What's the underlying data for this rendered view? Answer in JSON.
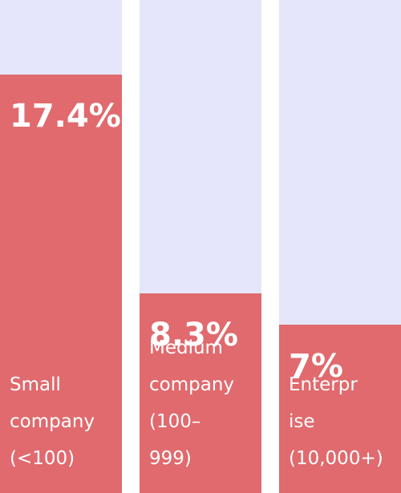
{
  "colors": {
    "track": "#e5e6fb",
    "bar": "#e06a6e",
    "text": "#ffffff"
  },
  "chart_data": {
    "type": "bar",
    "orientation": "vertical",
    "categories": [
      "Small\ncompany\n(<100)",
      "Medium\ncompany\n(100–\n999)",
      "Enterpr\nise\n(10,000+)"
    ],
    "values": [
      17.4,
      8.3,
      7
    ],
    "value_labels": [
      "17.4%",
      "8.3%",
      "7%"
    ],
    "ylim": [
      0,
      20.5
    ],
    "grid": false,
    "legend": "none"
  }
}
